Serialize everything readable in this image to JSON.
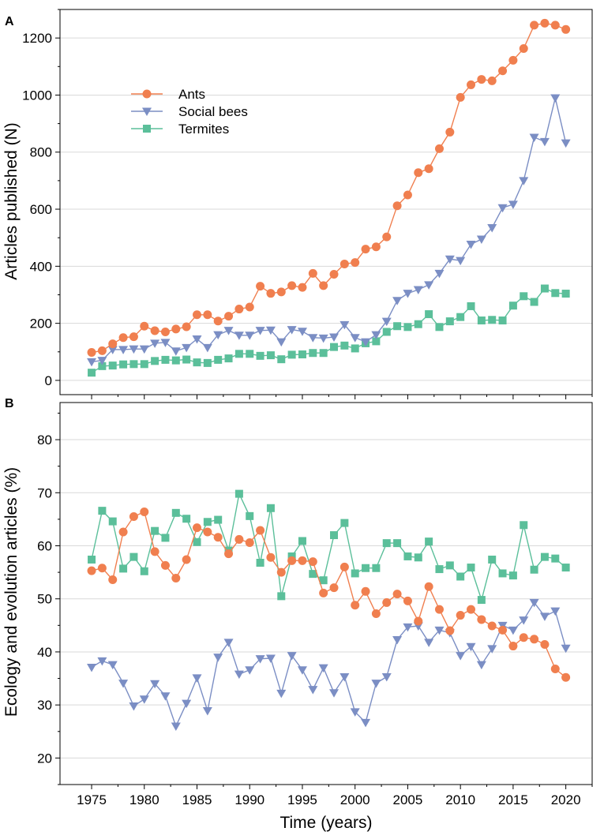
{
  "figure": {
    "panel_labels": [
      "A",
      "B"
    ]
  },
  "chart_data": [
    {
      "panel": "A",
      "type": "line",
      "xlabel": "Time (years)",
      "ylabel": "Articles published (N)",
      "xlim": [
        1972,
        2022.5
      ],
      "ylim": [
        -50,
        1300
      ],
      "yticks": [
        0,
        200,
        400,
        600,
        800,
        1000,
        1200
      ],
      "xticks": [
        1975,
        1980,
        1985,
        1990,
        1995,
        2000,
        2005,
        2010,
        2015,
        2020
      ],
      "grid": "horizontal",
      "legend": "upper-left",
      "x": [
        1975,
        1976,
        1977,
        1978,
        1979,
        1980,
        1981,
        1982,
        1983,
        1984,
        1985,
        1986,
        1987,
        1988,
        1989,
        1990,
        1991,
        1992,
        1993,
        1994,
        1995,
        1996,
        1997,
        1998,
        1999,
        2000,
        2001,
        2002,
        2003,
        2004,
        2005,
        2006,
        2007,
        2008,
        2009,
        2010,
        2011,
        2012,
        2013,
        2014,
        2015,
        2016,
        2017,
        2018,
        2019,
        2020
      ],
      "series": [
        {
          "name": "Ants",
          "color": "#f07f4f",
          "marker": "circle",
          "values": [
            98,
            104,
            128,
            150,
            153,
            190,
            174,
            170,
            180,
            188,
            230,
            230,
            208,
            225,
            250,
            257,
            330,
            305,
            310,
            332,
            326,
            375,
            332,
            372,
            408,
            413,
            460,
            468,
            503,
            612,
            650,
            728,
            742,
            812,
            870,
            992,
            1036,
            1055,
            1050,
            1085,
            1122,
            1163,
            1245,
            1252,
            1245,
            1230
          ]
        },
        {
          "name": "Social bees",
          "color": "#7b8ec4",
          "marker": "triangle-down",
          "values": [
            65,
            70,
            108,
            108,
            110,
            110,
            130,
            133,
            103,
            115,
            145,
            115,
            160,
            175,
            158,
            158,
            175,
            176,
            135,
            178,
            172,
            150,
            148,
            152,
            195,
            150,
            135,
            160,
            207,
            280,
            305,
            318,
            335,
            375,
            425,
            420,
            477,
            495,
            535,
            605,
            617,
            700,
            852,
            837,
            990,
            832
          ]
        },
        {
          "name": "Termites",
          "color": "#5bbf9a",
          "marker": "square",
          "values": [
            27,
            50,
            52,
            56,
            57,
            57,
            68,
            72,
            70,
            73,
            63,
            61,
            72,
            77,
            93,
            93,
            86,
            88,
            74,
            90,
            91,
            96,
            96,
            117,
            122,
            112,
            130,
            137,
            170,
            190,
            187,
            197,
            232,
            187,
            207,
            222,
            260,
            210,
            212,
            210,
            262,
            295,
            275,
            322,
            306,
            304
          ]
        }
      ]
    },
    {
      "panel": "B",
      "type": "line",
      "xlabel": "Time (years)",
      "ylabel": "Ecology and evolution articles (%)",
      "xlim": [
        1972,
        2022.5
      ],
      "ylim": [
        15,
        87
      ],
      "yticks": [
        20,
        30,
        40,
        50,
        60,
        70,
        80
      ],
      "xticks": [
        1975,
        1980,
        1985,
        1990,
        1995,
        2000,
        2005,
        2010,
        2015,
        2020
      ],
      "xtick_labels": [
        "1975",
        "1980",
        "1985",
        "1990",
        "1995",
        "2000",
        "2005",
        "2010",
        "2015",
        "2020"
      ],
      "grid": "horizontal",
      "x": [
        1975,
        1976,
        1977,
        1978,
        1979,
        1980,
        1981,
        1982,
        1983,
        1984,
        1985,
        1986,
        1987,
        1988,
        1989,
        1990,
        1991,
        1992,
        1993,
        1994,
        1995,
        1996,
        1997,
        1998,
        1999,
        2000,
        2001,
        2002,
        2003,
        2004,
        2005,
        2006,
        2007,
        2008,
        2009,
        2010,
        2011,
        2012,
        2013,
        2014,
        2015,
        2016,
        2017,
        2018,
        2019,
        2020
      ],
      "series": [
        {
          "name": "Ants",
          "color": "#f07f4f",
          "marker": "circle",
          "values": [
            55.3,
            55.8,
            53.6,
            62.6,
            65.5,
            66.4,
            58.9,
            56.3,
            53.9,
            57.4,
            63.4,
            62.6,
            61.6,
            58.5,
            61.2,
            60.6,
            62.9,
            57.8,
            55.0,
            57.2,
            57.2,
            57.0,
            51.1,
            52.1,
            56.0,
            48.8,
            51.4,
            47.2,
            49.3,
            50.9,
            49.6,
            45.8,
            52.3,
            48.0,
            44.0,
            46.9,
            48.0,
            46.1,
            44.9,
            44.1,
            41.1,
            42.7,
            42.4,
            41.4,
            36.8,
            35.2
          ]
        },
        {
          "name": "Social bees",
          "color": "#7b8ec4",
          "marker": "triangle-down",
          "values": [
            37.1,
            38.3,
            37.6,
            34.1,
            29.8,
            31.1,
            34.0,
            31.7,
            26.0,
            30.3,
            35.1,
            28.9,
            39.0,
            41.8,
            35.8,
            36.6,
            38.7,
            38.8,
            32.2,
            39.3,
            36.6,
            32.9,
            37.0,
            32.3,
            35.3,
            28.7,
            26.7,
            34.1,
            35.3,
            42.3,
            44.7,
            44.9,
            41.8,
            44.1,
            43.6,
            39.3,
            41.0,
            37.6,
            40.6,
            45.0,
            44.1,
            46.0,
            49.3,
            46.7,
            47.7,
            40.7
          ]
        },
        {
          "name": "Termites",
          "color": "#5bbf9a",
          "marker": "square",
          "values": [
            57.4,
            66.6,
            64.6,
            55.7,
            57.9,
            55.2,
            62.8,
            61.5,
            66.2,
            65.1,
            60.7,
            64.5,
            64.9,
            59.1,
            69.8,
            65.6,
            56.8,
            67.1,
            50.5,
            58.0,
            60.9,
            54.7,
            53.5,
            62.0,
            64.3,
            54.8,
            55.8,
            55.8,
            60.5,
            60.5,
            58.0,
            57.8,
            60.8,
            55.6,
            56.3,
            54.2,
            55.9,
            49.8,
            57.4,
            54.8,
            54.4,
            63.9,
            55.5,
            57.9,
            57.6,
            55.9
          ]
        }
      ]
    }
  ]
}
